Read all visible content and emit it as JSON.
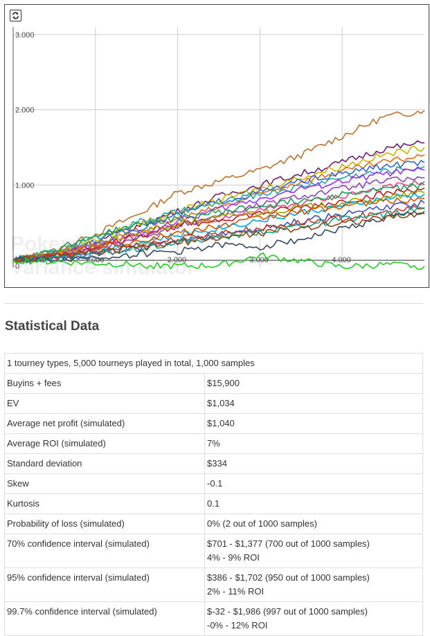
{
  "toolbar": {
    "refresh_icon": "refresh-icon"
  },
  "chart_data": {
    "type": "line",
    "watermark": [
      "Pokerdope.com",
      "Variance simulator"
    ],
    "x_ticks": [
      "1.000",
      "2.000",
      "3.000",
      "4.000"
    ],
    "x_tick_values": [
      1000,
      2000,
      3000,
      4000
    ],
    "y_ticks": [
      "0",
      "1.000",
      "2.000",
      "3.000"
    ],
    "y_tick_values": [
      0,
      1000,
      2000,
      3000
    ],
    "xlim": [
      0,
      5000
    ],
    "ylim": [
      -100,
      3100
    ],
    "grid": true,
    "series": [
      {
        "color": "#b87333",
        "points": [
          [
            0,
            0
          ],
          [
            500,
            120
          ],
          [
            1000,
            350
          ],
          [
            1500,
            600
          ],
          [
            2000,
            900
          ],
          [
            2500,
            1050
          ],
          [
            3000,
            1200
          ],
          [
            3500,
            1400
          ],
          [
            4000,
            1650
          ],
          [
            4500,
            1900
          ],
          [
            5000,
            1990
          ]
        ]
      },
      {
        "color": "#6a1b7a",
        "points": [
          [
            0,
            0
          ],
          [
            500,
            80
          ],
          [
            1000,
            250
          ],
          [
            1500,
            450
          ],
          [
            2000,
            650
          ],
          [
            2500,
            850
          ],
          [
            3000,
            1000
          ],
          [
            3500,
            1150
          ],
          [
            4000,
            1300
          ],
          [
            4500,
            1480
          ],
          [
            5000,
            1560
          ]
        ]
      },
      {
        "color": "#c8b400",
        "points": [
          [
            0,
            0
          ],
          [
            500,
            100
          ],
          [
            1000,
            280
          ],
          [
            1500,
            480
          ],
          [
            2000,
            650
          ],
          [
            2500,
            800
          ],
          [
            3000,
            950
          ],
          [
            3500,
            1100
          ],
          [
            4000,
            1250
          ],
          [
            4500,
            1400
          ],
          [
            5000,
            1500
          ]
        ]
      },
      {
        "color": "#e06a1a",
        "points": [
          [
            0,
            0
          ],
          [
            500,
            60
          ],
          [
            1000,
            200
          ],
          [
            1500,
            380
          ],
          [
            2000,
            550
          ],
          [
            2500,
            700
          ],
          [
            3000,
            880
          ],
          [
            3500,
            1050
          ],
          [
            4000,
            1180
          ],
          [
            4500,
            1300
          ],
          [
            5000,
            1400
          ]
        ]
      },
      {
        "color": "#3366cc",
        "points": [
          [
            0,
            0
          ],
          [
            500,
            90
          ],
          [
            1000,
            260
          ],
          [
            1500,
            420
          ],
          [
            2000,
            600
          ],
          [
            2500,
            780
          ],
          [
            3000,
            900
          ],
          [
            3500,
            1050
          ],
          [
            4000,
            1150
          ],
          [
            4500,
            1250
          ],
          [
            5000,
            1300
          ]
        ]
      },
      {
        "color": "#2aa198",
        "points": [
          [
            0,
            0
          ],
          [
            500,
            120
          ],
          [
            1000,
            300
          ],
          [
            1500,
            500
          ],
          [
            2000,
            640
          ],
          [
            2500,
            760
          ],
          [
            3000,
            880
          ],
          [
            3500,
            980
          ],
          [
            4000,
            1100
          ],
          [
            4500,
            1180
          ],
          [
            5000,
            1250
          ]
        ]
      },
      {
        "color": "#9b30ff",
        "points": [
          [
            0,
            0
          ],
          [
            500,
            50
          ],
          [
            1000,
            180
          ],
          [
            1500,
            350
          ],
          [
            2000,
            520
          ],
          [
            2500,
            680
          ],
          [
            3000,
            820
          ],
          [
            3500,
            950
          ],
          [
            4000,
            1050
          ],
          [
            4500,
            1150
          ],
          [
            5000,
            1200
          ]
        ]
      },
      {
        "color": "#e84393",
        "points": [
          [
            0,
            0
          ],
          [
            500,
            80
          ],
          [
            1000,
            200
          ],
          [
            1500,
            330
          ],
          [
            2000,
            460
          ],
          [
            2500,
            560
          ],
          [
            3000,
            660
          ],
          [
            3500,
            760
          ],
          [
            4000,
            860
          ],
          [
            4500,
            960
          ],
          [
            5000,
            1050
          ]
        ]
      },
      {
        "color": "#8e44ad",
        "points": [
          [
            0,
            0
          ],
          [
            500,
            30
          ],
          [
            1000,
            150
          ],
          [
            1500,
            300
          ],
          [
            2000,
            450
          ],
          [
            2500,
            600
          ],
          [
            3000,
            730
          ],
          [
            3500,
            850
          ],
          [
            4000,
            950
          ],
          [
            4500,
            1050
          ],
          [
            5000,
            1100
          ]
        ]
      },
      {
        "color": "#1f9d55",
        "points": [
          [
            0,
            0
          ],
          [
            500,
            140
          ],
          [
            1000,
            330
          ],
          [
            1500,
            470
          ],
          [
            2000,
            560
          ],
          [
            2500,
            640
          ],
          [
            3000,
            720
          ],
          [
            3500,
            800
          ],
          [
            4000,
            880
          ],
          [
            4500,
            940
          ],
          [
            5000,
            1000
          ]
        ]
      },
      {
        "color": "#b71c1c",
        "points": [
          [
            0,
            0
          ],
          [
            500,
            60
          ],
          [
            1000,
            180
          ],
          [
            1500,
            320
          ],
          [
            2000,
            460
          ],
          [
            2500,
            540
          ],
          [
            3000,
            620
          ],
          [
            3500,
            700
          ],
          [
            4000,
            780
          ],
          [
            4500,
            880
          ],
          [
            5000,
            960
          ]
        ]
      },
      {
        "color": "#a0a000",
        "points": [
          [
            0,
            0
          ],
          [
            500,
            90
          ],
          [
            1000,
            220
          ],
          [
            1500,
            360
          ],
          [
            2000,
            480
          ],
          [
            2500,
            570
          ],
          [
            3000,
            640
          ],
          [
            3500,
            700
          ],
          [
            4000,
            760
          ],
          [
            4500,
            820
          ],
          [
            5000,
            900
          ]
        ]
      },
      {
        "color": "#00a6d6",
        "points": [
          [
            0,
            0
          ],
          [
            500,
            40
          ],
          [
            1000,
            130
          ],
          [
            1500,
            230
          ],
          [
            2000,
            330
          ],
          [
            2500,
            430
          ],
          [
            3000,
            530
          ],
          [
            3500,
            630
          ],
          [
            4000,
            720
          ],
          [
            4500,
            810
          ],
          [
            5000,
            880
          ]
        ]
      },
      {
        "color": "#d35400",
        "points": [
          [
            0,
            0
          ],
          [
            500,
            70
          ],
          [
            1000,
            160
          ],
          [
            1500,
            260
          ],
          [
            2000,
            360
          ],
          [
            2500,
            450
          ],
          [
            3000,
            560
          ],
          [
            3500,
            650
          ],
          [
            4000,
            720
          ],
          [
            4500,
            780
          ],
          [
            5000,
            820
          ]
        ]
      },
      {
        "color": "#3f51b5",
        "points": [
          [
            0,
            0
          ],
          [
            500,
            20
          ],
          [
            1000,
            80
          ],
          [
            1500,
            150
          ],
          [
            2000,
            240
          ],
          [
            2500,
            330
          ],
          [
            3000,
            430
          ],
          [
            3500,
            520
          ],
          [
            4000,
            610
          ],
          [
            4500,
            700
          ],
          [
            5000,
            760
          ]
        ]
      },
      {
        "color": "#c0392b",
        "points": [
          [
            0,
            0
          ],
          [
            500,
            50
          ],
          [
            1000,
            110
          ],
          [
            1500,
            200
          ],
          [
            2000,
            280
          ],
          [
            2500,
            360
          ],
          [
            3000,
            420
          ],
          [
            3500,
            500
          ],
          [
            4000,
            560
          ],
          [
            4500,
            630
          ],
          [
            5000,
            700
          ]
        ]
      },
      {
        "color": "#16a085",
        "points": [
          [
            0,
            0
          ],
          [
            500,
            30
          ],
          [
            1000,
            90
          ],
          [
            1500,
            160
          ],
          [
            2000,
            240
          ],
          [
            2500,
            300
          ],
          [
            3000,
            380
          ],
          [
            3500,
            460
          ],
          [
            4000,
            540
          ],
          [
            4500,
            600
          ],
          [
            5000,
            680
          ]
        ]
      },
      {
        "color": "#34495e",
        "points": [
          [
            0,
            0
          ],
          [
            500,
            10
          ],
          [
            1000,
            40
          ],
          [
            1500,
            80
          ],
          [
            2000,
            120
          ],
          [
            2500,
            200
          ],
          [
            3000,
            180
          ],
          [
            3500,
            280
          ],
          [
            4000,
            420
          ],
          [
            4500,
            550
          ],
          [
            5000,
            650
          ]
        ]
      },
      {
        "color": "#8b4513",
        "points": [
          [
            0,
            0
          ],
          [
            500,
            40
          ],
          [
            1000,
            100
          ],
          [
            1500,
            170
          ],
          [
            2000,
            230
          ],
          [
            2500,
            300
          ],
          [
            3000,
            360
          ],
          [
            3500,
            430
          ],
          [
            4000,
            500
          ],
          [
            4500,
            560
          ],
          [
            5000,
            620
          ]
        ]
      },
      {
        "color": "#22cc22",
        "points": [
          [
            0,
            0
          ],
          [
            500,
            -20
          ],
          [
            1000,
            -40
          ],
          [
            1500,
            -60
          ],
          [
            2000,
            -80
          ],
          [
            2500,
            -70
          ],
          [
            3000,
            60
          ],
          [
            3500,
            -10
          ],
          [
            4000,
            -90
          ],
          [
            4500,
            -60
          ],
          [
            5000,
            -80
          ]
        ]
      }
    ]
  },
  "stats": {
    "title": "Statistical Data",
    "summary": "1 tourney types, 5,000 tourneys played in total, 1,000 samples",
    "rows": [
      {
        "label": "Buyins + fees",
        "value": "$15,900"
      },
      {
        "label": "EV",
        "value": "$1,034"
      },
      {
        "label": "Average net profit (simulated)",
        "value": "$1,040"
      },
      {
        "label": "Average ROI (simulated)",
        "value": "7%"
      },
      {
        "label": "Standard deviation",
        "value": "$334"
      },
      {
        "label": "Skew",
        "value": "-0.1"
      },
      {
        "label": "Kurtosis",
        "value": "0.1"
      },
      {
        "label": "Probability of loss (simulated)",
        "value": "0% (2 out of 1000 samples)"
      },
      {
        "label": "70% confidence interval (simulated)",
        "value": "$701 - $1,377 (700 out of 1000 samples)",
        "value2": "4% - 9% ROI"
      },
      {
        "label": "95% confidence interval (simulated)",
        "value": "$386 - $1,702 (950 out of 1000 samples)",
        "value2": "2% - 11% ROI"
      },
      {
        "label": "99.7% confidence interval (simulated)",
        "value": "$-32 - $1,986 (997 out of 1000 samples)",
        "value2": "-0% - 12% ROI"
      }
    ]
  }
}
